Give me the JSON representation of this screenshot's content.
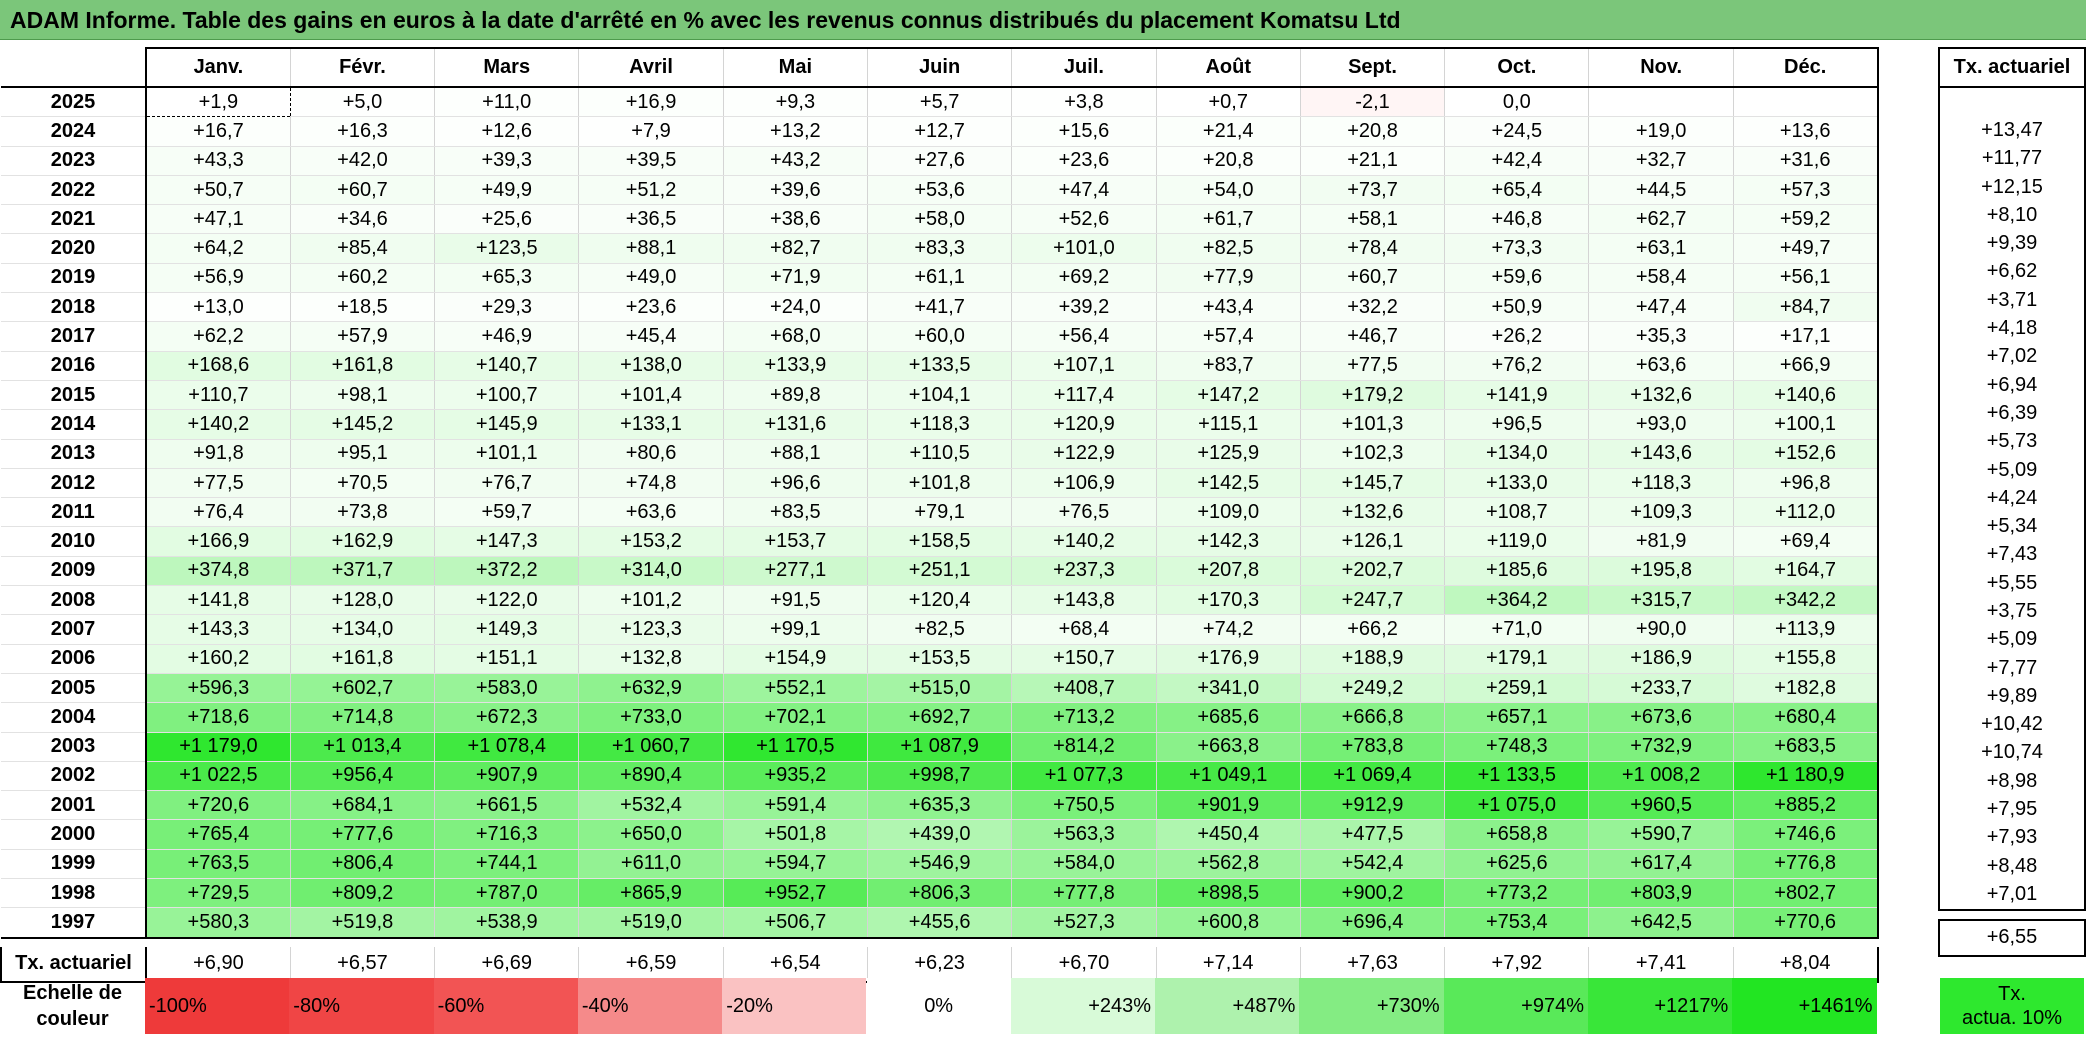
{
  "title": "ADAM Informe. Table des gains en euros à la date d'arrêté en % avec les revenus connus distribués du placement Komatsu Ltd",
  "months": [
    "Janv.",
    "Févr.",
    "Mars",
    "Avril",
    "Mai",
    "Juin",
    "Juil.",
    "Août",
    "Sept.",
    "Oct.",
    "Nov.",
    "Déc."
  ],
  "side_header": "Tx. actuariel",
  "rows": [
    {
      "year": "2025",
      "values": [
        "+1,9",
        "+5,0",
        "+11,0",
        "+16,9",
        "+9,3",
        "+5,7",
        "+3,8",
        "+0,7",
        "-2,1",
        "0,0",
        "",
        ""
      ],
      "tx": ""
    },
    {
      "year": "2024",
      "values": [
        "+16,7",
        "+16,3",
        "+12,6",
        "+7,9",
        "+13,2",
        "+12,7",
        "+15,6",
        "+21,4",
        "+20,8",
        "+24,5",
        "+19,0",
        "+13,6"
      ],
      "tx": "+13,47"
    },
    {
      "year": "2023",
      "values": [
        "+43,3",
        "+42,0",
        "+39,3",
        "+39,5",
        "+43,2",
        "+27,6",
        "+23,6",
        "+20,8",
        "+21,1",
        "+42,4",
        "+32,7",
        "+31,6"
      ],
      "tx": "+11,77"
    },
    {
      "year": "2022",
      "values": [
        "+50,7",
        "+60,7",
        "+49,9",
        "+51,2",
        "+39,6",
        "+53,6",
        "+47,4",
        "+54,0",
        "+73,7",
        "+65,4",
        "+44,5",
        "+57,3"
      ],
      "tx": "+12,15"
    },
    {
      "year": "2021",
      "values": [
        "+47,1",
        "+34,6",
        "+25,6",
        "+36,5",
        "+38,6",
        "+58,0",
        "+52,6",
        "+61,7",
        "+58,1",
        "+46,8",
        "+62,7",
        "+59,2"
      ],
      "tx": "+8,10"
    },
    {
      "year": "2020",
      "values": [
        "+64,2",
        "+85,4",
        "+123,5",
        "+88,1",
        "+82,7",
        "+83,3",
        "+101,0",
        "+82,5",
        "+78,4",
        "+73,3",
        "+63,1",
        "+49,7"
      ],
      "tx": "+9,39"
    },
    {
      "year": "2019",
      "values": [
        "+56,9",
        "+60,2",
        "+65,3",
        "+49,0",
        "+71,9",
        "+61,1",
        "+69,2",
        "+77,9",
        "+60,7",
        "+59,6",
        "+58,4",
        "+56,1"
      ],
      "tx": "+6,62"
    },
    {
      "year": "2018",
      "values": [
        "+13,0",
        "+18,5",
        "+29,3",
        "+23,6",
        "+24,0",
        "+41,7",
        "+39,2",
        "+43,4",
        "+32,2",
        "+50,9",
        "+47,4",
        "+84,7"
      ],
      "tx": "+3,71"
    },
    {
      "year": "2017",
      "values": [
        "+62,2",
        "+57,9",
        "+46,9",
        "+45,4",
        "+68,0",
        "+60,0",
        "+56,4",
        "+57,4",
        "+46,7",
        "+26,2",
        "+35,3",
        "+17,1"
      ],
      "tx": "+4,18"
    },
    {
      "year": "2016",
      "values": [
        "+168,6",
        "+161,8",
        "+140,7",
        "+138,0",
        "+133,9",
        "+133,5",
        "+107,1",
        "+83,7",
        "+77,5",
        "+76,2",
        "+63,6",
        "+66,9"
      ],
      "tx": "+7,02"
    },
    {
      "year": "2015",
      "values": [
        "+110,7",
        "+98,1",
        "+100,7",
        "+101,4",
        "+89,8",
        "+104,1",
        "+117,4",
        "+147,2",
        "+179,2",
        "+141,9",
        "+132,6",
        "+140,6"
      ],
      "tx": "+6,94"
    },
    {
      "year": "2014",
      "values": [
        "+140,2",
        "+145,2",
        "+145,9",
        "+133,1",
        "+131,6",
        "+118,3",
        "+120,9",
        "+115,1",
        "+101,3",
        "+96,5",
        "+93,0",
        "+100,1"
      ],
      "tx": "+6,39"
    },
    {
      "year": "2013",
      "values": [
        "+91,8",
        "+95,1",
        "+101,1",
        "+80,6",
        "+88,1",
        "+110,5",
        "+122,9",
        "+125,9",
        "+102,3",
        "+134,0",
        "+143,6",
        "+152,6"
      ],
      "tx": "+5,73"
    },
    {
      "year": "2012",
      "values": [
        "+77,5",
        "+70,5",
        "+76,7",
        "+74,8",
        "+96,6",
        "+101,8",
        "+106,9",
        "+142,5",
        "+145,7",
        "+133,0",
        "+118,3",
        "+96,8"
      ],
      "tx": "+5,09"
    },
    {
      "year": "2011",
      "values": [
        "+76,4",
        "+73,8",
        "+59,7",
        "+63,6",
        "+83,5",
        "+79,1",
        "+76,5",
        "+109,0",
        "+132,6",
        "+108,7",
        "+109,3",
        "+112,0"
      ],
      "tx": "+4,24"
    },
    {
      "year": "2010",
      "values": [
        "+166,9",
        "+162,9",
        "+147,3",
        "+153,2",
        "+153,7",
        "+158,5",
        "+140,2",
        "+142,3",
        "+126,1",
        "+119,0",
        "+81,9",
        "+69,4"
      ],
      "tx": "+5,34"
    },
    {
      "year": "2009",
      "values": [
        "+374,8",
        "+371,7",
        "+372,2",
        "+314,0",
        "+277,1",
        "+251,1",
        "+237,3",
        "+207,8",
        "+202,7",
        "+185,6",
        "+195,8",
        "+164,7"
      ],
      "tx": "+7,43"
    },
    {
      "year": "2008",
      "values": [
        "+141,8",
        "+128,0",
        "+122,0",
        "+101,2",
        "+91,5",
        "+120,4",
        "+143,8",
        "+170,3",
        "+247,7",
        "+364,2",
        "+315,7",
        "+342,2"
      ],
      "tx": "+5,55"
    },
    {
      "year": "2007",
      "values": [
        "+143,3",
        "+134,0",
        "+149,3",
        "+123,3",
        "+99,1",
        "+82,5",
        "+68,4",
        "+74,2",
        "+66,2",
        "+71,0",
        "+90,0",
        "+113,9"
      ],
      "tx": "+3,75"
    },
    {
      "year": "2006",
      "values": [
        "+160,2",
        "+161,8",
        "+151,1",
        "+132,8",
        "+154,9",
        "+153,5",
        "+150,7",
        "+176,9",
        "+188,9",
        "+179,1",
        "+186,9",
        "+155,8"
      ],
      "tx": "+5,09"
    },
    {
      "year": "2005",
      "values": [
        "+596,3",
        "+602,7",
        "+583,0",
        "+632,9",
        "+552,1",
        "+515,0",
        "+408,7",
        "+341,0",
        "+249,2",
        "+259,1",
        "+233,7",
        "+182,8"
      ],
      "tx": "+7,77"
    },
    {
      "year": "2004",
      "values": [
        "+718,6",
        "+714,8",
        "+672,3",
        "+733,0",
        "+702,1",
        "+692,7",
        "+713,2",
        "+685,6",
        "+666,8",
        "+657,1",
        "+673,6",
        "+680,4"
      ],
      "tx": "+9,89"
    },
    {
      "year": "2003",
      "values": [
        "+1 179,0",
        "+1 013,4",
        "+1 078,4",
        "+1 060,7",
        "+1 170,5",
        "+1 087,9",
        "+814,2",
        "+663,8",
        "+783,8",
        "+748,3",
        "+732,9",
        "+683,5"
      ],
      "tx": "+10,42"
    },
    {
      "year": "2002",
      "values": [
        "+1 022,5",
        "+956,4",
        "+907,9",
        "+890,4",
        "+935,2",
        "+998,7",
        "+1 077,3",
        "+1 049,1",
        "+1 069,4",
        "+1 133,5",
        "+1 008,2",
        "+1 180,9"
      ],
      "tx": "+10,74"
    },
    {
      "year": "2001",
      "values": [
        "+720,6",
        "+684,1",
        "+661,5",
        "+532,4",
        "+591,4",
        "+635,3",
        "+750,5",
        "+901,9",
        "+912,9",
        "+1 075,0",
        "+960,5",
        "+885,2"
      ],
      "tx": "+8,98"
    },
    {
      "year": "2000",
      "values": [
        "+765,4",
        "+777,6",
        "+716,3",
        "+650,0",
        "+501,8",
        "+439,0",
        "+563,3",
        "+450,4",
        "+477,5",
        "+658,8",
        "+590,7",
        "+746,6"
      ],
      "tx": "+7,95"
    },
    {
      "year": "1999",
      "values": [
        "+763,5",
        "+806,4",
        "+744,1",
        "+611,0",
        "+594,7",
        "+546,9",
        "+584,0",
        "+562,8",
        "+542,4",
        "+625,6",
        "+617,4",
        "+776,8"
      ],
      "tx": "+7,93"
    },
    {
      "year": "1998",
      "values": [
        "+729,5",
        "+809,2",
        "+787,0",
        "+865,9",
        "+952,7",
        "+806,3",
        "+777,8",
        "+898,5",
        "+900,2",
        "+773,2",
        "+803,9",
        "+802,7"
      ],
      "tx": "+8,48"
    },
    {
      "year": "1997",
      "values": [
        "+580,3",
        "+519,8",
        "+538,9",
        "+519,0",
        "+506,7",
        "+455,6",
        "+527,3",
        "+600,8",
        "+696,4",
        "+753,4",
        "+642,5",
        "+770,6"
      ],
      "tx": "+7,01"
    }
  ],
  "tx_row": {
    "label": "Tx. actuariel",
    "values": [
      "+6,90",
      "+6,57",
      "+6,69",
      "+6,59",
      "+6,54",
      "+6,23",
      "+6,70",
      "+7,14",
      "+7,63",
      "+7,92",
      "+7,41",
      "+8,04"
    ],
    "overall": "+6,55"
  },
  "scale": {
    "label_line1": "Echelle de",
    "label_line2": "couleur",
    "cells": [
      {
        "text": "-100%",
        "color": "#ee3a3a",
        "kind": "neg"
      },
      {
        "text": "-80%",
        "color": "#f04545",
        "kind": "neg"
      },
      {
        "text": "-60%",
        "color": "#f25454",
        "kind": "neg"
      },
      {
        "text": "-40%",
        "color": "#f58a8a",
        "kind": "neg"
      },
      {
        "text": "-20%",
        "color": "#fac2c2",
        "kind": "neg"
      },
      {
        "text": "0%",
        "color": "#ffffff",
        "kind": "zero"
      },
      {
        "text": "+243%",
        "color": "#d8fad8",
        "kind": "pos"
      },
      {
        "text": "+487%",
        "color": "#aef2ad",
        "kind": "pos"
      },
      {
        "text": "+730%",
        "color": "#84ec83",
        "kind": "pos"
      },
      {
        "text": "+974%",
        "color": "#59e959",
        "kind": "pos"
      },
      {
        "text": "+1217%",
        "color": "#39e639",
        "kind": "pos"
      },
      {
        "text": "+1461%",
        "color": "#22e522",
        "kind": "pos"
      }
    ],
    "tx_line1": "Tx.",
    "tx_line2": "actua. 10%"
  }
}
